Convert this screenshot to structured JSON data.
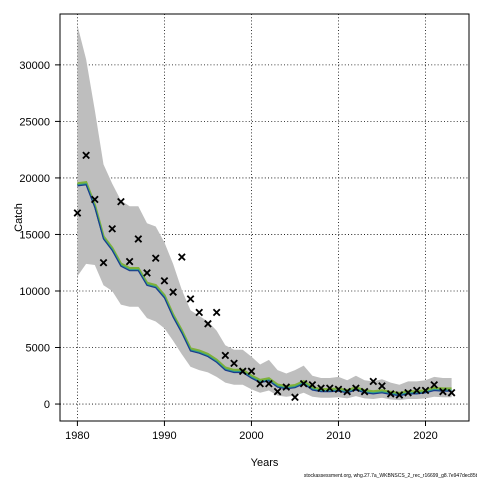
{
  "chart_data": {
    "type": "line",
    "xlabel": "Years",
    "ylabel": "Catch",
    "xlim": [
      1978,
      2025
    ],
    "ylim": [
      -1500,
      34500
    ],
    "x_ticks": [
      1980,
      1990,
      2000,
      2010,
      2020
    ],
    "y_ticks": [
      0,
      5000,
      10000,
      15000,
      20000,
      25000,
      30000
    ],
    "grid": true,
    "colors": {
      "ci_band": "#bebebe",
      "line_dark_blue": "#1a3a8c",
      "line_teal": "#2a9d8f",
      "line_green": "#7fb13a",
      "observed": "#000000"
    },
    "years": [
      1980,
      1981,
      1982,
      1983,
      1984,
      1985,
      1986,
      1987,
      1988,
      1989,
      1990,
      1991,
      1992,
      1993,
      1994,
      1995,
      1996,
      1997,
      1998,
      1999,
      2000,
      2001,
      2002,
      2003,
      2004,
      2005,
      2006,
      2007,
      2008,
      2009,
      2010,
      2011,
      2012,
      2013,
      2014,
      2015,
      2016,
      2017,
      2018,
      2019,
      2020,
      2021,
      2022,
      2023
    ],
    "estimate": [
      19400,
      19500,
      17500,
      14700,
      13700,
      12300,
      11900,
      11900,
      10600,
      10400,
      9500,
      7800,
      6400,
      4800,
      4600,
      4300,
      3800,
      3100,
      2900,
      2900,
      2400,
      2000,
      2150,
      1600,
      1450,
      1550,
      1900,
      1350,
      1200,
      1200,
      1250,
      1100,
      1350,
      1100,
      1000,
      1100,
      950,
      850,
      1000,
      1000,
      1100,
      1300,
      1250,
      1250
    ],
    "ci_lower": [
      11300,
      12400,
      12300,
      10500,
      10000,
      8800,
      8600,
      8600,
      7600,
      7300,
      6700,
      5600,
      4400,
      3300,
      3000,
      2800,
      2400,
      1900,
      1700,
      1700,
      1300,
      1000,
      1200,
      750,
      650,
      750,
      1000,
      650,
      550,
      550,
      600,
      500,
      700,
      500,
      450,
      550,
      400,
      350,
      450,
      450,
      500,
      650,
      600,
      600
    ],
    "ci_upper": [
      33500,
      30500,
      26000,
      21200,
      19500,
      18000,
      17500,
      17500,
      16000,
      15700,
      14300,
      12400,
      10100,
      8300,
      7800,
      7300,
      6500,
      5200,
      4800,
      4800,
      4200,
      3500,
      3900,
      3000,
      2700,
      3000,
      3400,
      2500,
      2300,
      2300,
      2400,
      2100,
      2500,
      2100,
      2000,
      2200,
      1900,
      1700,
      2000,
      2000,
      2100,
      2400,
      2300,
      2300
    ],
    "observed": {
      "years": [
        1980,
        1981,
        1982,
        1983,
        1984,
        1985,
        1986,
        1987,
        1988,
        1989,
        1990,
        1991,
        1992,
        1993,
        1994,
        1995,
        1996,
        1997,
        1998,
        1999,
        2000,
        2001,
        2002,
        2003,
        2004,
        2005,
        2006,
        2007,
        2008,
        2009,
        2010,
        2011,
        2012,
        2013,
        2014,
        2015,
        2016,
        2017,
        2018,
        2019,
        2020,
        2021,
        2022,
        2023
      ],
      "values": [
        16900,
        22000,
        18100,
        12500,
        15500,
        17900,
        12600,
        14600,
        11600,
        12900,
        10900,
        9900,
        13000,
        9300,
        8100,
        7100,
        8100,
        4300,
        3600,
        2900,
        2900,
        1800,
        1800,
        1100,
        1500,
        600,
        1800,
        1700,
        1400,
        1400,
        1300,
        1100,
        1400,
        1100,
        2000,
        1600,
        900,
        800,
        1000,
        1200,
        1200,
        1700,
        1100,
        1000
      ]
    },
    "footer_note": "stockassessment.org, whg.27.7a_WKBNSCS_2_rec_r16699_g8.7e947dec85t"
  }
}
